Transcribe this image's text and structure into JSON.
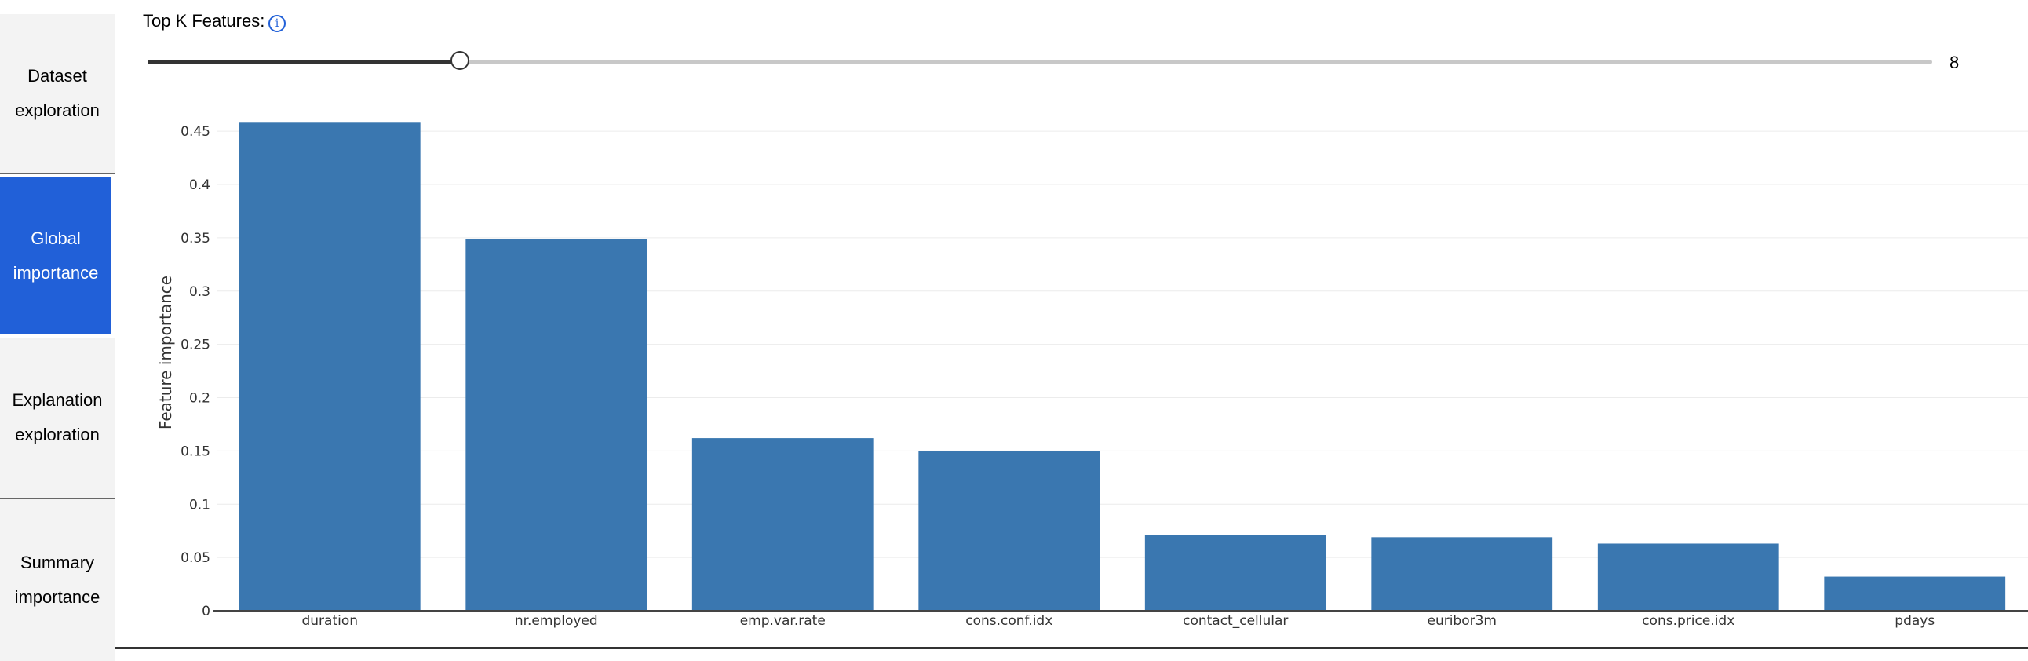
{
  "sidebar": {
    "items": [
      {
        "label": "Dataset\nexploration",
        "active": false
      },
      {
        "label": "Global\nimportance",
        "active": true
      },
      {
        "label": "Explanation\nexploration",
        "active": false
      },
      {
        "label": "Summary\nimportance",
        "active": false
      }
    ]
  },
  "topk": {
    "label": "Top K Features:",
    "info_icon": "info-icon",
    "value": "8",
    "min": 1,
    "max": 41
  },
  "chart_data": {
    "type": "bar",
    "categories": [
      "duration",
      "nr.employed",
      "emp.var.rate",
      "cons.conf.idx",
      "contact_cellular",
      "euribor3m",
      "cons.price.idx",
      "pdays"
    ],
    "values": [
      0.458,
      0.349,
      0.162,
      0.15,
      0.071,
      0.069,
      0.063,
      0.032
    ],
    "title": "",
    "xlabel": "",
    "ylabel": "Feature importance",
    "ylim": [
      0,
      0.47
    ],
    "yticks": [
      "0",
      "0.05",
      "0.1",
      "0.15",
      "0.2",
      "0.25",
      "0.3",
      "0.35",
      "0.4",
      "0.45"
    ],
    "grid": true,
    "bar_color": "#3a77b0"
  },
  "colors": {
    "accent": "#2160d8"
  }
}
